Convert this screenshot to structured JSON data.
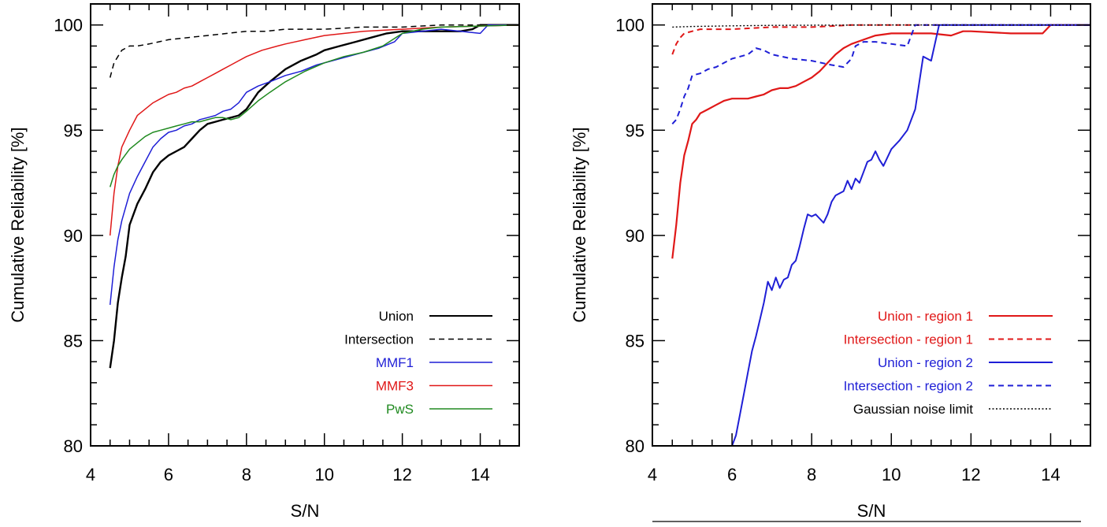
{
  "chart_data": [
    {
      "type": "line",
      "xlabel": "S/N",
      "ylabel": "Cumulative Reliability [%]",
      "xlim": [
        4,
        15
      ],
      "ylim": [
        80,
        101
      ],
      "xticks": [
        4,
        6,
        8,
        10,
        12,
        14
      ],
      "yticks": [
        80,
        85,
        90,
        95,
        100
      ],
      "legend_position": "bottom-right",
      "series": [
        {
          "name": "Union",
          "color": "#000000",
          "dash": "solid",
          "width": 2.4,
          "x": [
            4.5,
            4.6,
            4.7,
            4.8,
            4.9,
            5.0,
            5.2,
            5.4,
            5.6,
            5.8,
            6.0,
            6.2,
            6.4,
            6.6,
            6.8,
            7.0,
            7.2,
            7.4,
            7.6,
            7.8,
            8.0,
            8.3,
            8.6,
            9.0,
            9.4,
            9.8,
            10.0,
            10.4,
            10.8,
            11.2,
            11.6,
            12.0,
            12.5,
            13.0,
            13.5,
            13.8,
            14.0,
            15.0
          ],
          "y": [
            83.7,
            85.0,
            86.8,
            88.0,
            89.0,
            90.5,
            91.5,
            92.2,
            93.0,
            93.5,
            93.8,
            94.0,
            94.2,
            94.6,
            95.0,
            95.3,
            95.4,
            95.5,
            95.6,
            95.7,
            96.0,
            96.8,
            97.3,
            97.9,
            98.3,
            98.6,
            98.8,
            99.0,
            99.2,
            99.4,
            99.6,
            99.7,
            99.7,
            99.7,
            99.7,
            99.8,
            100.0,
            100.0
          ]
        },
        {
          "name": "Intersection",
          "color": "#000000",
          "dash": "dashed",
          "width": 1.5,
          "x": [
            4.5,
            4.6,
            4.7,
            4.8,
            5.0,
            5.2,
            5.5,
            6.0,
            6.5,
            7.0,
            7.5,
            8.0,
            8.5,
            9.0,
            9.5,
            10.0,
            11.0,
            12.0,
            13.0,
            15.0
          ],
          "y": [
            97.5,
            98.2,
            98.5,
            98.8,
            99.0,
            99.0,
            99.1,
            99.3,
            99.4,
            99.5,
            99.6,
            99.7,
            99.7,
            99.8,
            99.8,
            99.8,
            99.9,
            99.9,
            100.0,
            100.0
          ]
        },
        {
          "name": "MMF1",
          "color": "#1f1fd6",
          "dash": "solid",
          "width": 1.5,
          "x": [
            4.5,
            4.6,
            4.7,
            4.8,
            5.0,
            5.2,
            5.4,
            5.6,
            5.8,
            6.0,
            6.2,
            6.4,
            6.6,
            6.8,
            7.0,
            7.2,
            7.4,
            7.6,
            7.8,
            8.0,
            8.3,
            8.6,
            9.0,
            9.4,
            9.8,
            10.2,
            10.6,
            11.0,
            11.4,
            11.8,
            12.0,
            13.0,
            14.0,
            14.2,
            15.0
          ],
          "y": [
            86.7,
            88.5,
            89.8,
            90.7,
            92.0,
            92.8,
            93.5,
            94.2,
            94.6,
            94.9,
            95.0,
            95.2,
            95.3,
            95.5,
            95.6,
            95.7,
            95.9,
            96.0,
            96.3,
            96.8,
            97.1,
            97.3,
            97.6,
            97.8,
            98.1,
            98.3,
            98.5,
            98.7,
            98.9,
            99.2,
            99.6,
            99.8,
            99.6,
            100.0,
            100.0
          ]
        },
        {
          "name": "MMF3",
          "color": "#e01818",
          "dash": "solid",
          "width": 1.5,
          "x": [
            4.5,
            4.6,
            4.7,
            4.8,
            5.0,
            5.2,
            5.4,
            5.6,
            5.8,
            6.0,
            6.2,
            6.4,
            6.6,
            6.8,
            7.0,
            7.2,
            7.4,
            7.6,
            7.8,
            8.0,
            8.4,
            8.8,
            9.0,
            9.5,
            10.0,
            11.0,
            12.0,
            13.0,
            15.0
          ],
          "y": [
            90.0,
            92.0,
            93.3,
            94.2,
            95.0,
            95.7,
            96.0,
            96.3,
            96.5,
            96.7,
            96.8,
            97.0,
            97.1,
            97.3,
            97.5,
            97.7,
            97.9,
            98.1,
            98.3,
            98.5,
            98.8,
            99.0,
            99.1,
            99.3,
            99.5,
            99.7,
            99.8,
            99.9,
            100.0
          ]
        },
        {
          "name": "PwS",
          "color": "#208a20",
          "dash": "solid",
          "width": 1.5,
          "x": [
            4.5,
            4.6,
            4.7,
            4.8,
            5.0,
            5.2,
            5.4,
            5.6,
            5.8,
            6.0,
            6.2,
            6.4,
            6.6,
            6.8,
            7.0,
            7.2,
            7.4,
            7.6,
            7.8,
            8.0,
            8.3,
            8.6,
            9.0,
            9.5,
            10.0,
            10.5,
            11.0,
            11.5,
            12.0,
            12.5,
            13.0,
            15.0
          ],
          "y": [
            92.3,
            92.9,
            93.3,
            93.6,
            94.1,
            94.4,
            94.7,
            94.9,
            95.0,
            95.1,
            95.2,
            95.3,
            95.4,
            95.4,
            95.5,
            95.6,
            95.6,
            95.5,
            95.6,
            95.9,
            96.4,
            96.8,
            97.3,
            97.8,
            98.2,
            98.5,
            98.7,
            99.0,
            99.6,
            99.8,
            99.9,
            100.0
          ]
        }
      ]
    },
    {
      "type": "line",
      "xlabel": "S/N",
      "ylabel": "Cumulative Reliability [%]",
      "xlim": [
        4,
        15
      ],
      "ylim": [
        80,
        101
      ],
      "xticks": [
        4,
        6,
        8,
        10,
        12,
        14
      ],
      "yticks": [
        80,
        85,
        90,
        95,
        100
      ],
      "legend_position": "bottom-right",
      "series": [
        {
          "name": "Union - region 1",
          "color": "#e01818",
          "dash": "solid",
          "width": 2.2,
          "x": [
            4.5,
            4.6,
            4.7,
            4.8,
            4.9,
            5.0,
            5.1,
            5.2,
            5.4,
            5.6,
            5.8,
            6.0,
            6.2,
            6.4,
            6.6,
            6.8,
            7.0,
            7.2,
            7.4,
            7.6,
            7.8,
            8.0,
            8.2,
            8.4,
            8.6,
            8.8,
            9.0,
            9.3,
            9.6,
            10.0,
            11.0,
            11.5,
            11.8,
            12.0,
            13.0,
            13.8,
            14.0,
            15.0
          ],
          "y": [
            88.9,
            90.5,
            92.5,
            93.8,
            94.5,
            95.3,
            95.5,
            95.8,
            96.0,
            96.2,
            96.4,
            96.5,
            96.5,
            96.5,
            96.6,
            96.7,
            96.9,
            97.0,
            97.0,
            97.1,
            97.3,
            97.5,
            97.8,
            98.2,
            98.6,
            98.9,
            99.1,
            99.3,
            99.5,
            99.6,
            99.6,
            99.5,
            99.7,
            99.7,
            99.6,
            99.6,
            100.0,
            100.0
          ]
        },
        {
          "name": "Intersection - region 1",
          "color": "#e01818",
          "dash": "dashed",
          "width": 2.0,
          "x": [
            4.5,
            4.6,
            4.7,
            4.8,
            5.0,
            5.2,
            5.5,
            6.0,
            7.0,
            8.0,
            9.0,
            10.0,
            15.0
          ],
          "y": [
            98.6,
            99.1,
            99.4,
            99.6,
            99.7,
            99.8,
            99.8,
            99.8,
            99.9,
            99.9,
            100.0,
            100.0,
            100.0
          ]
        },
        {
          "name": "Union - region 2",
          "color": "#1f1fd6",
          "dash": "solid",
          "width": 2.0,
          "x": [
            6.0,
            6.1,
            6.2,
            6.3,
            6.4,
            6.5,
            6.6,
            6.7,
            6.8,
            6.9,
            7.0,
            7.1,
            7.2,
            7.3,
            7.4,
            7.5,
            7.6,
            7.7,
            7.8,
            7.9,
            8.0,
            8.1,
            8.2,
            8.3,
            8.4,
            8.5,
            8.6,
            8.8,
            8.9,
            9.0,
            9.1,
            9.2,
            9.3,
            9.4,
            9.5,
            9.6,
            9.7,
            9.8,
            10.0,
            10.2,
            10.4,
            10.6,
            10.8,
            11.0,
            11.2,
            11.4,
            11.6,
            11.8,
            12.0,
            13.0,
            15.0
          ],
          "y": [
            80.0,
            80.5,
            81.5,
            82.5,
            83.5,
            84.5,
            85.2,
            86.0,
            86.8,
            87.8,
            87.4,
            88.0,
            87.5,
            87.9,
            88.0,
            88.6,
            88.8,
            89.5,
            90.3,
            91.0,
            90.9,
            91.0,
            90.8,
            90.6,
            91.0,
            91.6,
            91.9,
            92.1,
            92.6,
            92.2,
            92.7,
            92.5,
            93.0,
            93.5,
            93.6,
            94.0,
            93.6,
            93.3,
            94.1,
            94.5,
            95.0,
            96.0,
            98.5,
            98.3,
            100.0,
            100.0,
            100.0,
            100.0,
            100.0,
            100.0,
            100.0
          ]
        },
        {
          "name": "Intersection - region 2",
          "color": "#1f1fd6",
          "dash": "dashed",
          "width": 2.0,
          "x": [
            4.5,
            4.6,
            4.7,
            4.8,
            4.9,
            5.0,
            5.2,
            5.4,
            5.6,
            5.8,
            6.0,
            6.2,
            6.4,
            6.6,
            6.8,
            7.0,
            7.5,
            8.0,
            8.5,
            8.8,
            9.0,
            9.1,
            9.3,
            9.6,
            10.0,
            10.4,
            10.6,
            10.7,
            15.0
          ],
          "y": [
            95.3,
            95.5,
            96.0,
            96.6,
            97.0,
            97.6,
            97.7,
            97.9,
            98.0,
            98.2,
            98.4,
            98.5,
            98.6,
            98.9,
            98.8,
            98.6,
            98.4,
            98.3,
            98.1,
            98.0,
            98.4,
            99.0,
            99.2,
            99.2,
            99.1,
            99.0,
            100.0,
            100.0,
            100.0
          ]
        },
        {
          "name": "Gaussian noise limit",
          "color": "#000000",
          "dash": "dotted",
          "width": 1.4,
          "x": [
            4.5,
            5.0,
            6.0,
            7.0,
            8.0,
            10.0,
            15.0
          ],
          "y": [
            99.9,
            99.93,
            99.96,
            99.98,
            99.99,
            100.0,
            100.0
          ]
        }
      ]
    }
  ]
}
